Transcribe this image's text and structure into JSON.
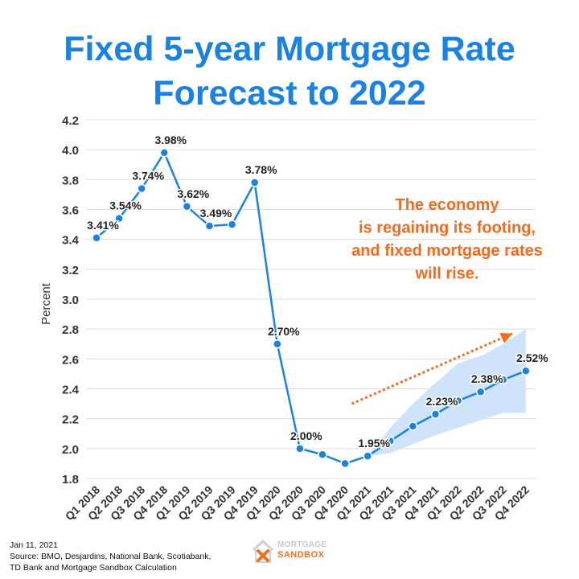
{
  "title_lines": [
    "Fixed 5-year Mortgage Rate",
    "Forecast to 2022"
  ],
  "chart_data": {
    "type": "line",
    "title": "Fixed 5-year Mortgage Rate Forecast to 2022",
    "ylabel": "Percent",
    "xlabel": "",
    "ylim": [
      1.8,
      4.2
    ],
    "yticks": [
      "1.8",
      "2.0",
      "2.2",
      "2.4",
      "2.6",
      "2.8",
      "3.0",
      "3.2",
      "3.4",
      "3.6",
      "3.8",
      "4.0",
      "4.2"
    ],
    "grid": true,
    "categories": [
      "Q1 2018",
      "Q2 2018",
      "Q3 2018",
      "Q4 2018",
      "Q1 2019",
      "Q2 2019",
      "Q3 2019",
      "Q4 2019",
      "Q1 2020",
      "Q2 2020",
      "Q3 2020",
      "Q4 2020",
      "Q1 2021",
      "Q2 2021",
      "Q3 2021",
      "Q4 2021",
      "Q1 2022",
      "Q2 2022",
      "Q3 2022",
      "Q4 2022"
    ],
    "series": [
      {
        "values": [
          3.41,
          3.54,
          3.74,
          3.98,
          3.62,
          3.49,
          3.5,
          3.78,
          2.7,
          2.0,
          1.96,
          1.9,
          1.95,
          2.05,
          2.15,
          2.23,
          2.32,
          2.38,
          2.46,
          2.52
        ],
        "color": "#1a82e2",
        "data_labels": [
          "3.41%",
          "3.54%",
          "3.74%",
          "3.98%",
          "3.62%",
          "3.49%",
          "",
          "3.78%",
          "2.70%",
          "2.00%",
          "",
          "",
          "1.95%",
          "",
          "",
          "2.23%",
          "",
          "2.38%",
          "",
          "2.52%"
        ]
      }
    ],
    "band": {
      "color": "#cfe4fb",
      "upper": [
        1.95,
        2.14,
        2.3,
        2.44,
        2.57,
        2.62,
        2.7,
        2.8
      ],
      "lower": [
        1.95,
        1.97,
        2.03,
        2.09,
        2.14,
        2.19,
        2.24,
        2.24
      ],
      "start_index": 12
    },
    "annotation": {
      "lines": [
        "The economy",
        "is regaining its footing,",
        "and fixed mortgage rates",
        "will rise."
      ],
      "color": "#f26a1b"
    },
    "trend_arrow": {
      "color": "#f26a1b",
      "from": [
        11.3,
        2.3
      ],
      "to": [
        18.4,
        2.77
      ]
    }
  },
  "footer": {
    "date": "Jan 11, 2021",
    "source_line1": "Source: BMO, Desjardins, National Bank, Scotiabank,",
    "source_line2": "TD Bank and Mortgage Sandbox Calculation"
  },
  "logo": {
    "top": "MORTGAGE",
    "bottom": "SANDBOX",
    "icon": "house-x-icon"
  }
}
